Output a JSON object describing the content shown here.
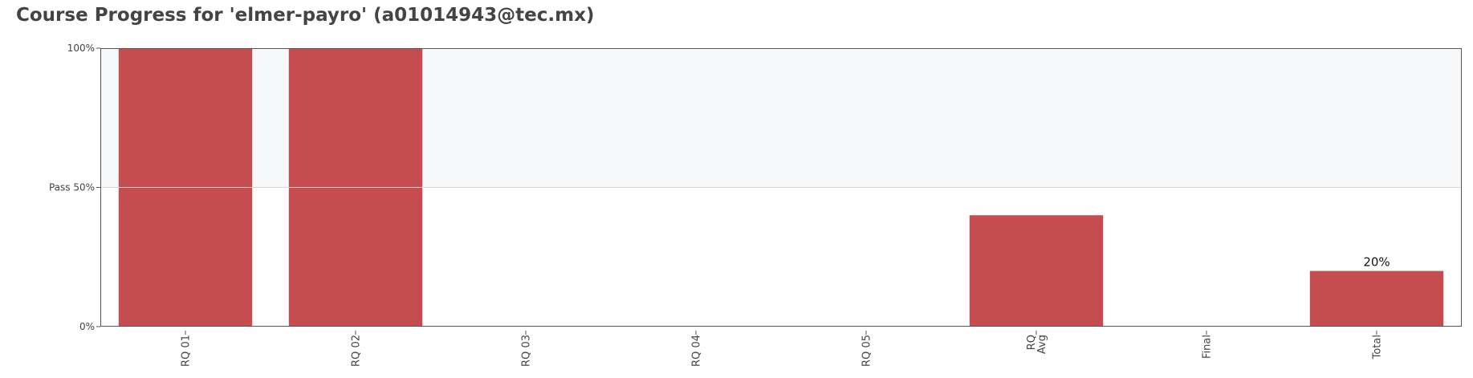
{
  "page": {
    "title": "Course Progress for 'elmer-payro' (a01014943@tec.mx)"
  },
  "colors": {
    "bar": "#c64d4f",
    "pass_region": "#f7f8fa",
    "axis": "#555555",
    "gridline": "#d8d8d8"
  },
  "chart_data": {
    "type": "bar",
    "categories": [
      [
        "RQ 01"
      ],
      [
        "RQ 02"
      ],
      [
        "RQ 03"
      ],
      [
        "RQ 04"
      ],
      [
        "RQ 05"
      ],
      [
        "RQ",
        "Avg"
      ],
      [
        "Final"
      ],
      [
        "Total"
      ]
    ],
    "values": [
      100,
      100,
      0,
      0,
      0,
      40,
      0,
      20
    ],
    "data_labels": [
      "",
      "",
      "",
      "",
      "",
      "",
      "",
      "20%"
    ],
    "ylim": [
      0,
      100
    ],
    "y_ticks": [
      {
        "value": 0,
        "label": "0%"
      },
      {
        "value": 50,
        "label": "Pass 50%"
      },
      {
        "value": 100,
        "label": "100%"
      }
    ],
    "pass_threshold": 50,
    "shaded_above_pass": true,
    "xlabel": "",
    "ylabel": "",
    "grid": false,
    "legend": false
  }
}
